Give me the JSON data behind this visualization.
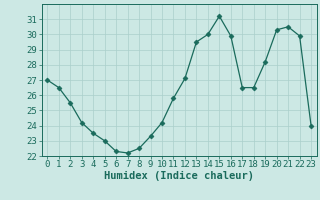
{
  "x": [
    0,
    1,
    2,
    3,
    4,
    5,
    6,
    7,
    8,
    9,
    10,
    11,
    12,
    13,
    14,
    15,
    16,
    17,
    18,
    19,
    20,
    21,
    22,
    23
  ],
  "y": [
    27.0,
    26.5,
    25.5,
    24.2,
    23.5,
    23.0,
    22.3,
    22.2,
    22.5,
    23.3,
    24.2,
    25.8,
    27.1,
    29.5,
    30.0,
    31.2,
    29.9,
    26.5,
    26.5,
    28.2,
    30.3,
    30.5,
    29.9,
    24.0
  ],
  "line_color": "#1a6b5c",
  "marker": "D",
  "marker_size": 2.5,
  "bg_color": "#cce8e4",
  "grid_color": "#aacfcb",
  "xlabel": "Humidex (Indice chaleur)",
  "ylim": [
    22,
    32
  ],
  "xlim": [
    -0.5,
    23.5
  ],
  "yticks": [
    22,
    23,
    24,
    25,
    26,
    27,
    28,
    29,
    30,
    31
  ],
  "xticks": [
    0,
    1,
    2,
    3,
    4,
    5,
    6,
    7,
    8,
    9,
    10,
    11,
    12,
    13,
    14,
    15,
    16,
    17,
    18,
    19,
    20,
    21,
    22,
    23
  ],
  "tick_fontsize": 6.5,
  "xlabel_fontsize": 7.5
}
